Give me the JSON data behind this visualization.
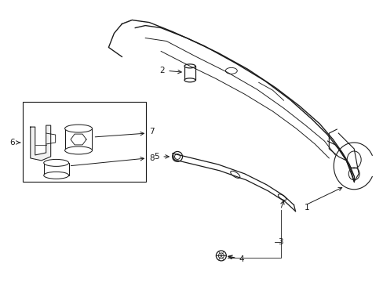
{
  "background_color": "#ffffff",
  "line_color": "#1a1a1a",
  "fig_width": 4.89,
  "fig_height": 3.6,
  "dpi": 100,
  "label_fontsize": 7.5,
  "line_width": 0.9
}
